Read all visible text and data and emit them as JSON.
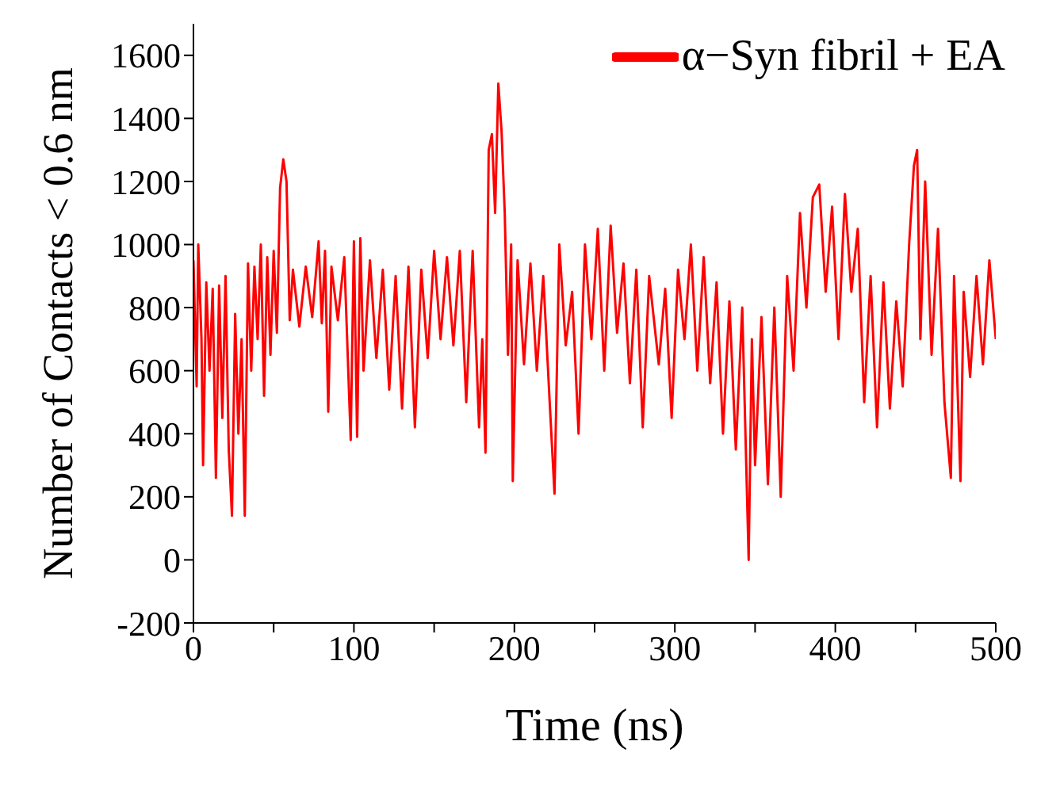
{
  "chart_data": {
    "type": "line",
    "xlabel": "Time (ns)",
    "ylabel": "Number of Contacts < 0.6 nm",
    "xlim": [
      0,
      500
    ],
    "ylim": [
      -200,
      1700
    ],
    "xticks": [
      0,
      {
        "value": 50,
        "label": null
      },
      100,
      {
        "value": 150,
        "label": null
      },
      200,
      {
        "value": 250,
        "label": null
      },
      300,
      {
        "value": 350,
        "label": null
      },
      400,
      {
        "value": 450,
        "label": null
      },
      500
    ],
    "yticks": [
      -200,
      0,
      200,
      400,
      600,
      800,
      1000,
      1200,
      1400,
      1600
    ],
    "grid": false,
    "legend": "top right",
    "marker": "none",
    "line_style": "solid",
    "series": [
      {
        "name": "α−Syn fibril + EA",
        "color": "#ff0000",
        "x": [
          0,
          2,
          3,
          5,
          6,
          8,
          10,
          12,
          14,
          16,
          18,
          20,
          22,
          24,
          26,
          28,
          30,
          32,
          34,
          36,
          38,
          40,
          42,
          44,
          46,
          48,
          50,
          52,
          54,
          56,
          58,
          60,
          62,
          66,
          70,
          74,
          78,
          80,
          82,
          84,
          86,
          90,
          94,
          98,
          100,
          102,
          104,
          106,
          110,
          114,
          118,
          122,
          126,
          130,
          134,
          138,
          142,
          146,
          150,
          154,
          158,
          162,
          166,
          170,
          174,
          178,
          180,
          182,
          184,
          186,
          188,
          190,
          192,
          194,
          196,
          198,
          199,
          202,
          206,
          210,
          214,
          218,
          222,
          225,
          228,
          232,
          236,
          240,
          244,
          248,
          252,
          256,
          260,
          264,
          268,
          272,
          276,
          280,
          284,
          290,
          294,
          298,
          302,
          306,
          310,
          314,
          318,
          322,
          326,
          330,
          334,
          338,
          342,
          346,
          348,
          350,
          354,
          358,
          362,
          366,
          370,
          374,
          378,
          382,
          386,
          390,
          394,
          398,
          402,
          406,
          410,
          414,
          418,
          422,
          426,
          430,
          434,
          438,
          442,
          446,
          449,
          451,
          453,
          456,
          460,
          464,
          468,
          472,
          474,
          478,
          480,
          484,
          488,
          492,
          496,
          500
        ],
        "values": [
          950,
          550,
          1000,
          700,
          300,
          880,
          600,
          860,
          260,
          870,
          450,
          900,
          350,
          140,
          780,
          400,
          700,
          140,
          940,
          600,
          930,
          700,
          1000,
          520,
          960,
          650,
          980,
          720,
          1180,
          1270,
          1200,
          760,
          920,
          740,
          930,
          770,
          1010,
          750,
          980,
          470,
          930,
          760,
          960,
          380,
          1010,
          390,
          1020,
          600,
          950,
          640,
          920,
          540,
          900,
          480,
          930,
          420,
          920,
          640,
          980,
          700,
          960,
          680,
          980,
          500,
          980,
          420,
          700,
          340,
          1300,
          1350,
          1100,
          1510,
          1360,
          1100,
          650,
          1000,
          250,
          950,
          620,
          940,
          600,
          900,
          500,
          210,
          1000,
          680,
          850,
          400,
          1000,
          700,
          1050,
          600,
          1060,
          720,
          940,
          560,
          920,
          420,
          900,
          620,
          860,
          450,
          920,
          700,
          1000,
          600,
          960,
          560,
          880,
          400,
          820,
          350,
          800,
          0,
          700,
          300,
          770,
          240,
          800,
          200,
          900,
          600,
          1100,
          800,
          1150,
          1190,
          850,
          1120,
          700,
          1160,
          850,
          1050,
          500,
          900,
          420,
          880,
          480,
          820,
          550,
          1000,
          1250,
          1300,
          700,
          1200,
          650,
          1050,
          500,
          260,
          900,
          250,
          850,
          580,
          900,
          620,
          950,
          700
        ]
      }
    ]
  }
}
